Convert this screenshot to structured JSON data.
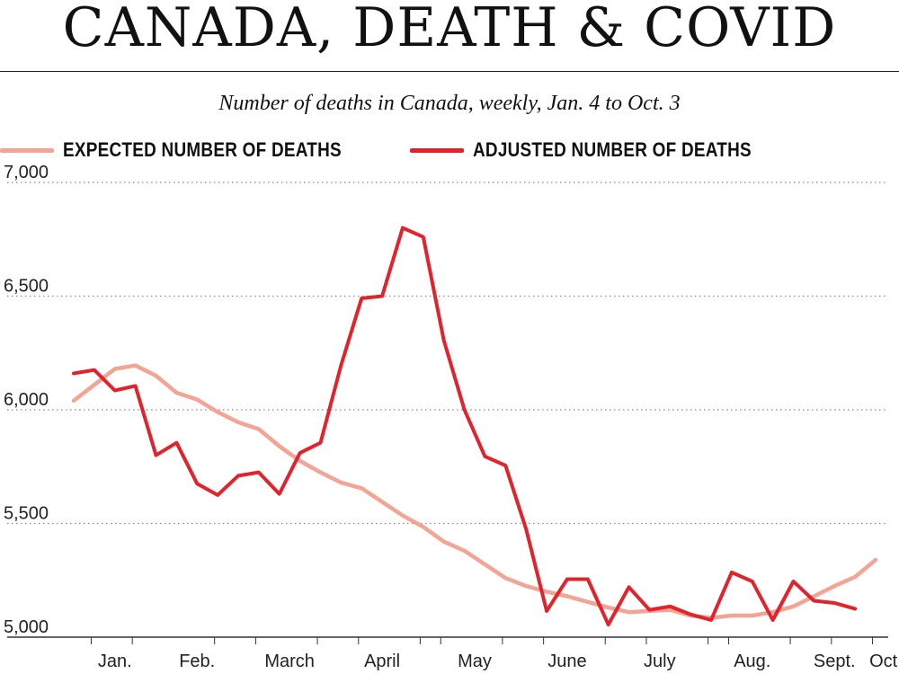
{
  "header": {
    "title": "CANADA, DEATH & COVID",
    "subtitle": "Number of deaths in Canada, weekly, Jan. 4 to Oct. 3"
  },
  "colors": {
    "expected": "#f3a494",
    "adjusted": "#e3232c",
    "grid": "#8a8a8a",
    "text": "#111111"
  },
  "chart_data": {
    "type": "line",
    "title": "CANADA, DEATH & COVID",
    "subtitle": "Number of deaths in Canada, weekly, Jan. 4 to Oct. 3",
    "ylim": [
      5000,
      7000
    ],
    "yticks": [
      5000,
      5500,
      6000,
      6500,
      7000
    ],
    "ytick_labels": [
      "5,000",
      "5,500",
      "6,000",
      "6,500",
      "7,000"
    ],
    "weeks": 40,
    "month_labels": [
      {
        "label": "Jan.",
        "week": 2
      },
      {
        "label": "Feb.",
        "week": 6
      },
      {
        "label": "March",
        "week": 10.5
      },
      {
        "label": "April",
        "week": 15
      },
      {
        "label": "May",
        "week": 19.5
      },
      {
        "label": "June",
        "week": 24
      },
      {
        "label": "July",
        "week": 28.5
      },
      {
        "label": "Aug.",
        "week": 33
      },
      {
        "label": "Sept.",
        "week": 37
      },
      {
        "label": "Oct.",
        "week": 39.5
      }
    ],
    "legend_position": "top-left",
    "grid": true,
    "series": [
      {
        "name": "EXPECTED NUMBER OF DEATHS",
        "values": [
          6040,
          6110,
          6180,
          6195,
          6150,
          6075,
          6045,
          5990,
          5945,
          5915,
          5840,
          5775,
          5725,
          5680,
          5655,
          5595,
          5535,
          5485,
          5420,
          5380,
          5320,
          5260,
          5225,
          5200,
          5180,
          5155,
          5130,
          5110,
          5115,
          5120,
          5095,
          5085,
          5095,
          5095,
          5110,
          5135,
          5180,
          5225,
          5265,
          5340
        ]
      },
      {
        "name": "ADJUSTED NUMBER OF DEATHS",
        "values": [
          6160,
          6175,
          6085,
          6105,
          5800,
          5855,
          5675,
          5625,
          5710,
          5725,
          5630,
          5810,
          5855,
          6195,
          6490,
          6500,
          6800,
          6760,
          6305,
          6000,
          5795,
          5755,
          5475,
          5115,
          5255,
          5255,
          5055,
          5220,
          5120,
          5135,
          5100,
          5075,
          5285,
          5245,
          5075,
          5245,
          5160,
          5150,
          5125
        ]
      }
    ]
  }
}
